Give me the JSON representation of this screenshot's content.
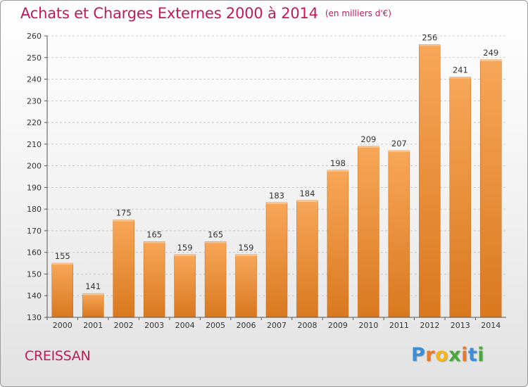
{
  "title": "Achats et Charges Externes 2000 à 2014",
  "subtitle": "(en milliers d'€)",
  "commune": "CREISSAN",
  "logo": {
    "letters": [
      "P",
      "r",
      "o",
      "x",
      "i",
      "t",
      "i"
    ],
    "colors": [
      "#3a8fd8",
      "#e8792a",
      "#f2b51b",
      "#4aa83a",
      "#e8792a",
      "#3a8fd8",
      "#4aa83a"
    ]
  },
  "colors": {
    "title": "#c2185b",
    "bar_light": "#f7a758",
    "bar_dark": "#d9781f",
    "axis": "#555555",
    "grid": "#bdbdbd"
  },
  "chart_data": {
    "type": "bar",
    "title": "Achats et Charges Externes 2000 à 2014",
    "subtitle": "(en milliers d'€)",
    "categories": [
      "2000",
      "2001",
      "2002",
      "2003",
      "2004",
      "2005",
      "2006",
      "2007",
      "2008",
      "2009",
      "2010",
      "2011",
      "2012",
      "2013",
      "2014"
    ],
    "values": [
      155,
      141,
      175,
      165,
      159,
      165,
      159,
      183,
      184,
      198,
      209,
      207,
      256,
      241,
      249
    ],
    "ylim": [
      130,
      260
    ],
    "yticks": [
      130,
      140,
      150,
      160,
      170,
      180,
      190,
      200,
      210,
      220,
      230,
      240,
      250,
      260
    ],
    "grid": true,
    "data_labels": true
  }
}
